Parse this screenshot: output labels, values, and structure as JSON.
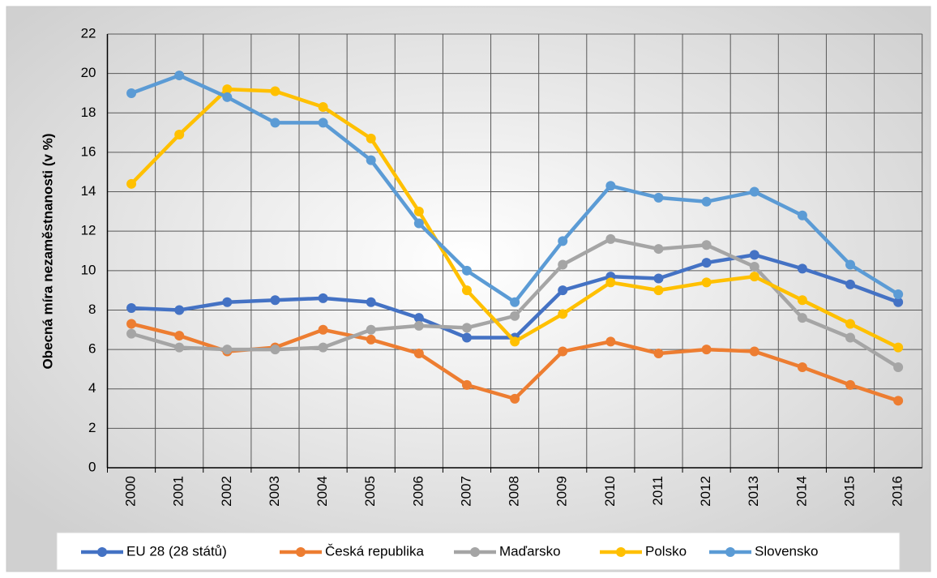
{
  "chart_data": {
    "type": "line",
    "y_label": "Obecná míra nezaměstnanosti (v %)",
    "categories": [
      "2000",
      "2001",
      "2002",
      "2003",
      "2004",
      "2005",
      "2006",
      "2007",
      "2008",
      "2009",
      "2010",
      "2011",
      "2012",
      "2013",
      "2014",
      "2015",
      "2016"
    ],
    "series": [
      {
        "name": "EU 28 (28 států)",
        "color": "#4472c4",
        "values": [
          8.1,
          8.0,
          8.4,
          8.5,
          8.6,
          8.4,
          7.6,
          6.6,
          6.6,
          9.0,
          9.7,
          9.6,
          10.4,
          10.8,
          10.1,
          9.3,
          8.4
        ]
      },
      {
        "name": "Česká republika",
        "color": "#ed7d31",
        "values": [
          7.3,
          6.7,
          5.9,
          6.1,
          7.0,
          6.5,
          5.8,
          4.2,
          3.5,
          5.9,
          6.4,
          5.8,
          6.0,
          5.9,
          5.1,
          4.2,
          3.4
        ]
      },
      {
        "name": "Maďarsko",
        "color": "#a5a5a5",
        "values": [
          6.8,
          6.1,
          6.0,
          6.0,
          6.1,
          7.0,
          7.2,
          7.1,
          7.7,
          10.3,
          11.6,
          11.1,
          11.3,
          10.2,
          7.6,
          6.6,
          5.1
        ]
      },
      {
        "name": "Polsko",
        "color": "#ffc000",
        "values": [
          14.4,
          16.9,
          19.2,
          19.1,
          18.3,
          16.7,
          13.0,
          9.0,
          6.4,
          7.8,
          9.4,
          9.0,
          9.4,
          9.7,
          8.5,
          7.3,
          6.1
        ]
      },
      {
        "name": "Slovensko",
        "color": "#5b9bd5",
        "values": [
          19.0,
          19.9,
          18.8,
          17.5,
          17.5,
          15.6,
          12.4,
          10.0,
          8.4,
          11.5,
          14.3,
          13.7,
          13.5,
          14.0,
          12.8,
          10.3,
          8.8
        ]
      }
    ],
    "ylim": [
      0,
      22
    ],
    "yticks": [
      0,
      2,
      4,
      6,
      8,
      10,
      12,
      14,
      16,
      18,
      20,
      22
    ],
    "grid": true,
    "legend": "bottom"
  }
}
